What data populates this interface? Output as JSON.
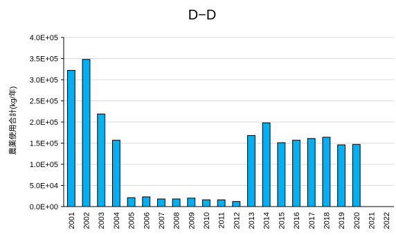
{
  "chart_data": {
    "type": "bar",
    "title": "D−D",
    "ylabel": "農薬使用合計(kg/年)",
    "xlabel": "",
    "ylim": [
      0,
      400000
    ],
    "yticks": [
      0,
      50000,
      100000,
      150000,
      200000,
      250000,
      300000,
      350000,
      400000
    ],
    "ytick_labels": [
      "0.0E+00",
      "5.0E+04",
      "1.0E+05",
      "1.5E+05",
      "2.0E+05",
      "2.5E+05",
      "3.0E+05",
      "3.5E+05",
      "4.0E+05"
    ],
    "categories": [
      "2001",
      "2002",
      "2003",
      "2004",
      "2005",
      "2006",
      "2007",
      "2008",
      "2009",
      "2010",
      "2011",
      "2012",
      "2013",
      "2014",
      "2015",
      "2016",
      "2017",
      "2018",
      "2019",
      "2020",
      "2021",
      "2022"
    ],
    "values": [
      322000,
      348000,
      219000,
      157000,
      21000,
      23000,
      18000,
      18000,
      20000,
      16000,
      16000,
      12000,
      168000,
      198000,
      151000,
      157000,
      161000,
      164000,
      146000,
      147000,
      null,
      null
    ],
    "bar_color": "#00b0f0",
    "grid": true,
    "legend": "none"
  }
}
